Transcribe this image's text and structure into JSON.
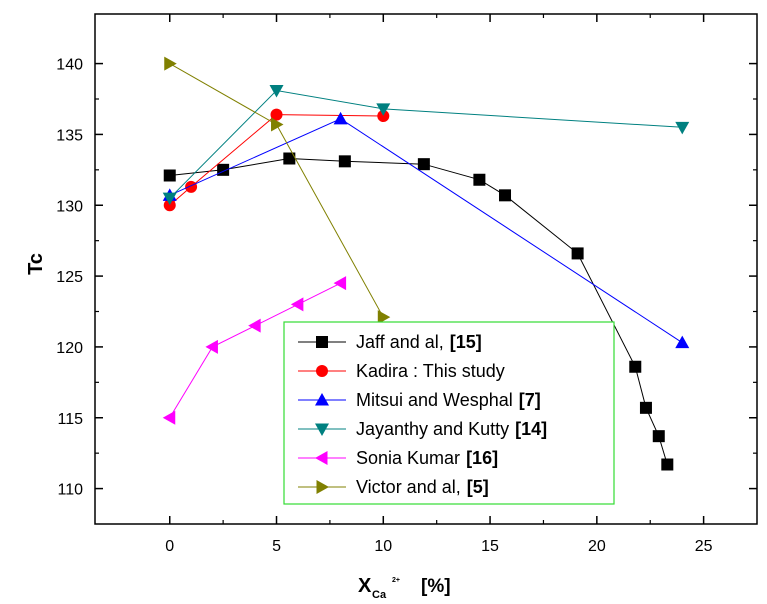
{
  "chart_data": {
    "type": "line",
    "ylabel": "Tc",
    "xlabel": {
      "main": "X",
      "sub": "Ca",
      "sup": "2+",
      "unit": "[%]"
    },
    "xlim": [
      -3.5,
      27.5
    ],
    "ylim": [
      107.5,
      143.5
    ],
    "xticks": [
      0,
      5,
      10,
      15,
      20,
      25
    ],
    "yticks": [
      110,
      115,
      120,
      125,
      130,
      135,
      140
    ],
    "grid": false,
    "legend_position": "bottom-right (inside)",
    "series": [
      {
        "name": "Jaff and al,",
        "ref": "[15]",
        "color": "#000000",
        "marker": "square",
        "x": [
          0,
          2.5,
          5.6,
          8.2,
          11.9,
          14.5,
          15.7,
          19.1,
          21.8,
          22.3,
          22.9,
          23.3
        ],
        "y": [
          132.1,
          132.5,
          133.3,
          133.1,
          132.9,
          131.8,
          130.7,
          126.6,
          118.6,
          115.7,
          113.7,
          111.7
        ]
      },
      {
        "name": "Kadira : This study",
        "ref": "",
        "color": "#ff0000",
        "marker": "circle",
        "x": [
          0,
          1,
          5,
          10
        ],
        "y": [
          130.0,
          131.3,
          136.4,
          136.3
        ]
      },
      {
        "name": "Mitsui and Wesphal",
        "ref": "[7]",
        "color": "#0000ff",
        "marker": "triangle-up",
        "x": [
          0,
          8,
          24
        ],
        "y": [
          130.7,
          136.1,
          120.3
        ]
      },
      {
        "name": "Jayanthy and Kutty",
        "ref": "[14]",
        "color": "#008080",
        "marker": "triangle-down",
        "x": [
          0,
          5,
          10,
          24
        ],
        "y": [
          130.5,
          138.1,
          136.8,
          135.5
        ]
      },
      {
        "name": "Sonia Kumar",
        "ref": "[16]",
        "color": "#ff00ff",
        "marker": "triangle-left",
        "x": [
          0,
          2,
          4,
          6,
          8
        ],
        "y": [
          115.0,
          120.0,
          121.5,
          123.0,
          124.5
        ]
      },
      {
        "name": "Victor and al,",
        "ref": "[5]",
        "color": "#808000",
        "marker": "triangle-right",
        "x": [
          0,
          5,
          10
        ],
        "y": [
          140.0,
          135.7,
          122.1
        ]
      }
    ]
  }
}
